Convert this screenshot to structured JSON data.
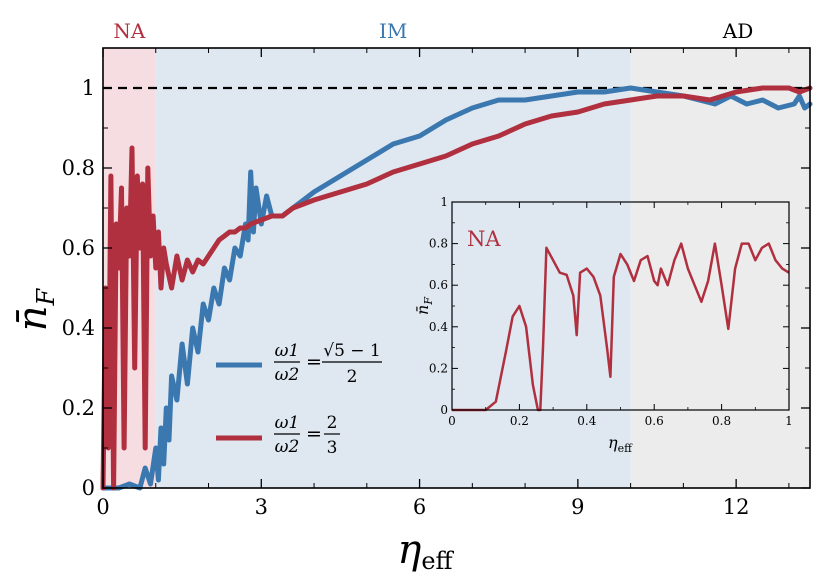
{
  "colors": {
    "blue": "#3b78b0",
    "red": "#b0303f",
    "na_region": "#f5dde2",
    "im_region": "#dfe8f1",
    "ad_region": "#ececec",
    "axis": "#000000",
    "reference_line": "#000000"
  },
  "regions": [
    {
      "label": "NA",
      "start": 0,
      "end": 1,
      "color_key": "red"
    },
    {
      "label": "IM",
      "start": 1,
      "end": 10,
      "color_key": "blue"
    },
    {
      "label": "AD",
      "start": 10,
      "end": 13.4,
      "color_key": "axis"
    }
  ],
  "chart_data": [
    {
      "id": "main",
      "type": "line",
      "ylabel_base": "n̄",
      "ylabel_sub": "F",
      "xlabel_base": "η",
      "xlabel_sub": "eff",
      "xlim": [
        0,
        13.4
      ],
      "ylim": [
        0,
        1.1
      ],
      "xticks": [
        0,
        3,
        6,
        9,
        12
      ],
      "yticks": [
        0,
        0.2,
        0.4,
        0.6,
        0.8,
        1
      ],
      "xtick_labels": [
        "0",
        "3",
        "6",
        "9",
        "12"
      ],
      "ytick_labels": [
        "0",
        "0.2",
        "0.4",
        "0.6",
        "0.8",
        "1"
      ],
      "reference_y": 1.0,
      "series": [
        {
          "name": "golden",
          "legend_lhs_num": "ω1",
          "legend_lhs_den": "ω2",
          "legend_rhs_num": "√5 − 1",
          "legend_rhs_den": "2",
          "color_key": "blue",
          "x": [
            0,
            0.3,
            0.5,
            0.7,
            0.8,
            0.9,
            1.0,
            1.05,
            1.1,
            1.15,
            1.2,
            1.25,
            1.3,
            1.4,
            1.5,
            1.6,
            1.7,
            1.8,
            1.9,
            2.0,
            2.1,
            2.2,
            2.3,
            2.4,
            2.5,
            2.6,
            2.7,
            2.75,
            2.8,
            2.85,
            2.9,
            3.0,
            3.1,
            3.2,
            3.4,
            3.6,
            3.8,
            4.0,
            4.5,
            5.0,
            5.5,
            6.0,
            6.5,
            7.0,
            7.5,
            8.0,
            8.5,
            9.0,
            9.5,
            10.0,
            10.5,
            11.0,
            11.3,
            11.6,
            11.9,
            12.2,
            12.5,
            12.8,
            13.1,
            13.2,
            13.3,
            13.4
          ],
          "y": [
            0.0,
            0.0,
            0.01,
            0.0,
            0.05,
            0.01,
            0.1,
            0.02,
            0.15,
            0.06,
            0.2,
            0.12,
            0.28,
            0.22,
            0.36,
            0.26,
            0.4,
            0.34,
            0.46,
            0.42,
            0.5,
            0.46,
            0.55,
            0.52,
            0.6,
            0.58,
            0.66,
            0.62,
            0.79,
            0.64,
            0.75,
            0.66,
            0.73,
            0.68,
            0.68,
            0.7,
            0.72,
            0.74,
            0.78,
            0.82,
            0.86,
            0.88,
            0.92,
            0.95,
            0.97,
            0.97,
            0.98,
            0.99,
            0.99,
            1.0,
            0.99,
            0.98,
            0.97,
            0.96,
            0.98,
            0.96,
            0.97,
            0.95,
            0.96,
            0.98,
            0.95,
            0.96
          ]
        },
        {
          "name": "rational",
          "legend_lhs_num": "ω1",
          "legend_lhs_den": "ω2",
          "legend_rhs_num": "2",
          "legend_rhs_den": "3",
          "color_key": "red",
          "x": [
            0,
            0.05,
            0.1,
            0.15,
            0.2,
            0.25,
            0.3,
            0.35,
            0.4,
            0.45,
            0.5,
            0.55,
            0.6,
            0.65,
            0.7,
            0.75,
            0.8,
            0.85,
            0.9,
            0.95,
            1.0,
            1.05,
            1.1,
            1.15,
            1.2,
            1.3,
            1.4,
            1.5,
            1.6,
            1.7,
            1.8,
            1.9,
            2.0,
            2.1,
            2.2,
            2.3,
            2.4,
            2.5,
            2.6,
            2.7,
            2.8,
            3.0,
            3.2,
            3.4,
            3.6,
            3.8,
            4.0,
            4.5,
            5.0,
            5.5,
            6.0,
            6.5,
            7.0,
            7.5,
            8.0,
            8.5,
            9.0,
            9.5,
            10.0,
            10.5,
            11.0,
            11.5,
            12.0,
            12.5,
            13.0,
            13.2,
            13.4
          ],
          "y": [
            0.0,
            0.5,
            0.1,
            0.78,
            0.0,
            0.66,
            0.55,
            0.75,
            0.1,
            0.7,
            0.58,
            0.85,
            0.3,
            0.78,
            0.6,
            0.76,
            0.1,
            0.8,
            0.58,
            0.68,
            0.55,
            0.64,
            0.5,
            0.6,
            0.56,
            0.5,
            0.58,
            0.52,
            0.57,
            0.54,
            0.57,
            0.56,
            0.58,
            0.6,
            0.62,
            0.63,
            0.64,
            0.64,
            0.65,
            0.65,
            0.66,
            0.67,
            0.68,
            0.68,
            0.7,
            0.71,
            0.72,
            0.74,
            0.76,
            0.79,
            0.81,
            0.83,
            0.86,
            0.88,
            0.91,
            0.93,
            0.94,
            0.96,
            0.97,
            0.98,
            0.98,
            0.97,
            0.99,
            1.0,
            1.0,
            0.99,
            1.0
          ]
        }
      ]
    },
    {
      "id": "inset",
      "type": "line",
      "annotation": "NA",
      "ylabel_base": "n̄",
      "ylabel_sub": "F",
      "xlabel_base": "η",
      "xlabel_sub": "eff",
      "xlim": [
        0,
        1
      ],
      "ylim": [
        0,
        1
      ],
      "xticks": [
        0,
        0.2,
        0.4,
        0.6,
        0.8,
        1
      ],
      "yticks": [
        0,
        0.2,
        0.4,
        0.6,
        0.8,
        1
      ],
      "xtick_labels": [
        "0",
        "0.2",
        "0.4",
        "0.6",
        "0.8",
        "1"
      ],
      "ytick_labels": [
        "0",
        "0.2",
        "0.4",
        "0.6",
        "0.8",
        "1"
      ],
      "series": [
        {
          "name": "inset-rational",
          "color_key": "red",
          "x": [
            0,
            0.1,
            0.13,
            0.16,
            0.18,
            0.2,
            0.22,
            0.24,
            0.255,
            0.262,
            0.27,
            0.28,
            0.3,
            0.32,
            0.34,
            0.36,
            0.37,
            0.38,
            0.4,
            0.42,
            0.44,
            0.46,
            0.47,
            0.48,
            0.5,
            0.52,
            0.54,
            0.56,
            0.58,
            0.6,
            0.61,
            0.62,
            0.64,
            0.66,
            0.68,
            0.7,
            0.72,
            0.74,
            0.76,
            0.78,
            0.8,
            0.82,
            0.84,
            0.86,
            0.88,
            0.9,
            0.92,
            0.94,
            0.96,
            0.98,
            1.0
          ],
          "y": [
            0,
            0.0,
            0.04,
            0.28,
            0.45,
            0.5,
            0.4,
            0.12,
            0.0,
            0.0,
            0.3,
            0.78,
            0.72,
            0.66,
            0.65,
            0.55,
            0.36,
            0.66,
            0.68,
            0.64,
            0.55,
            0.3,
            0.16,
            0.64,
            0.75,
            0.7,
            0.62,
            0.72,
            0.74,
            0.62,
            0.6,
            0.68,
            0.6,
            0.72,
            0.8,
            0.68,
            0.6,
            0.52,
            0.62,
            0.8,
            0.6,
            0.39,
            0.68,
            0.8,
            0.8,
            0.72,
            0.78,
            0.8,
            0.72,
            0.68,
            0.66
          ]
        }
      ]
    }
  ]
}
